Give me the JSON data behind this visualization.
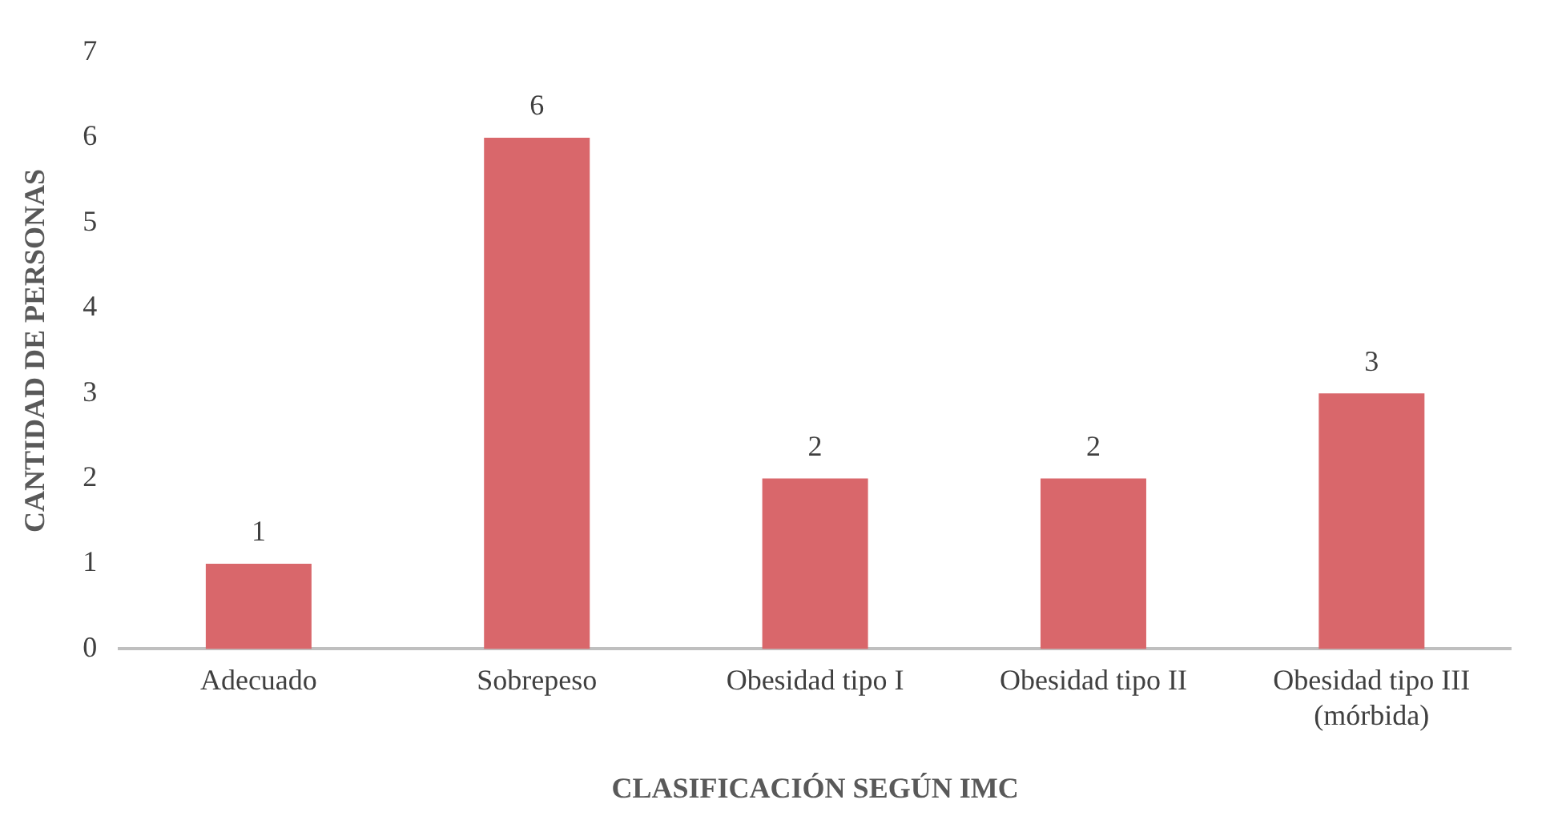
{
  "chart_data": {
    "type": "bar",
    "xlabel": "CLASIFICACIÓN SEGÚN IMC",
    "ylabel": "CANTIDAD DE PERSONAS",
    "categories": [
      "Adecuado",
      "Sobrepeso",
      "Obesidad tipo I",
      "Obesidad tipo II",
      "Obesidad tipo III (mórbida)"
    ],
    "values": [
      1,
      6,
      2,
      2,
      3
    ],
    "color": "#d9676b",
    "ylim": [
      0,
      7
    ],
    "yticks": [
      0,
      1,
      2,
      3,
      4,
      5,
      6,
      7
    ],
    "grid": false,
    "data_labels": true,
    "legend": false
  }
}
